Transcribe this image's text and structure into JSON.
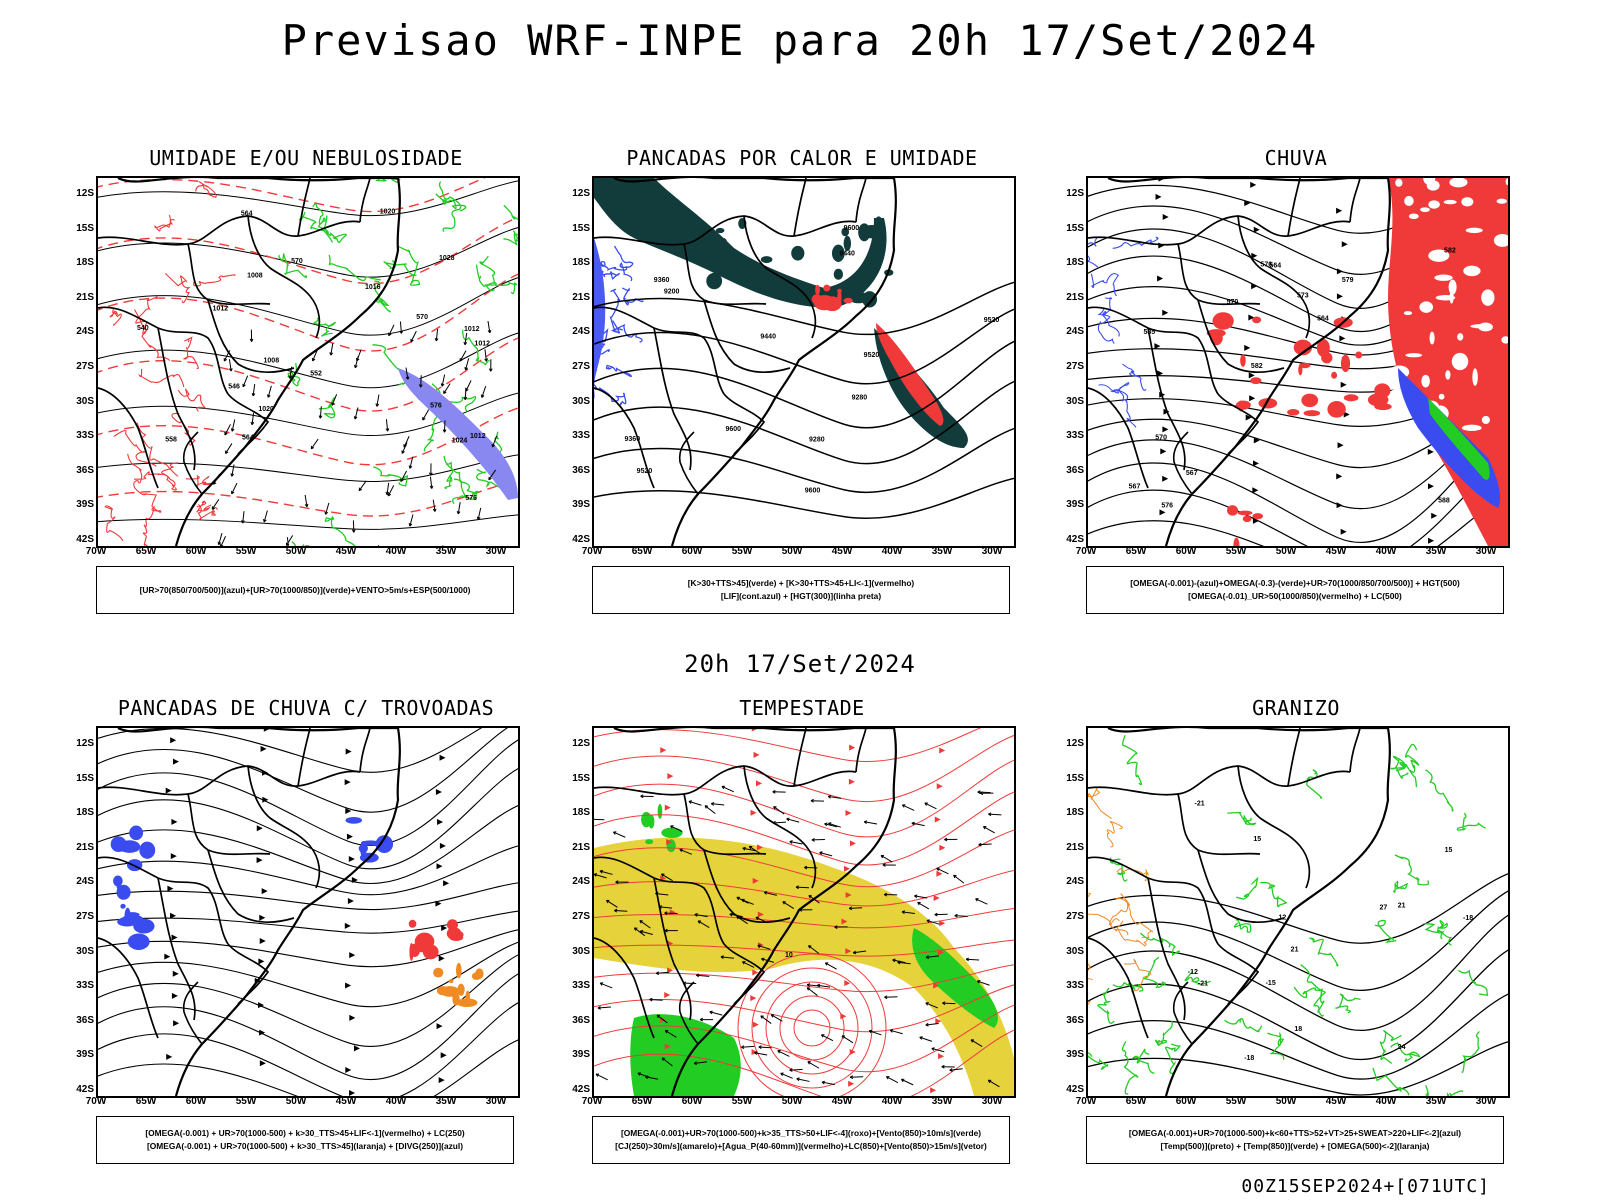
{
  "header": {
    "title": "Previsao WRF-INPE  para 20h 17/Set/2024"
  },
  "subheader": {
    "time_label": "20h 17/Set/2024"
  },
  "footer": {
    "run_label": "00Z15SEP2024+[071UTC]"
  },
  "axes": {
    "lat_labels": [
      "12S",
      "15S",
      "18S",
      "21S",
      "24S",
      "27S",
      "30S",
      "33S",
      "36S",
      "39S",
      "42S"
    ],
    "lon_labels": [
      "70W",
      "65W",
      "60W",
      "55W",
      "50W",
      "45W",
      "40W",
      "35W",
      "30W"
    ]
  },
  "colors": {
    "blue": "#3a4cf0",
    "green": "#22cc22",
    "red": "#f03a3a",
    "yellow": "#e6d23a",
    "orange": "#f08a22",
    "darkteal": "#123c3c",
    "purple": "#7878f0"
  },
  "panels": [
    {
      "id": "umidade",
      "title": "UMIDADE E/OU NEBULOSIDADE",
      "legend": [
        "[UR>70(850/700/500)](azul)+[UR>70(1000/850)](verde)+VENTO>5m/s+ESP(500/1000)"
      ],
      "contour_labels": [
        "1008",
        "1012",
        "1016",
        "1012",
        "1008",
        "1012",
        "1020",
        "1020",
        "1024",
        "1028",
        "1012",
        "576",
        "570",
        "564",
        "558",
        "552",
        "546",
        "540",
        "564",
        "570",
        "576"
      ]
    },
    {
      "id": "pancadas-calor",
      "title": "PANCADAS POR CALOR E UMIDADE",
      "legend": [
        "[K>30+TTS>45](verde) + [K>30+TTS>45+LI<-1](vermelho)",
        "[LIF](cont.azul) + [HGT(300)](linha preta)"
      ],
      "contour_labels": [
        "9600",
        "9600",
        "9600",
        "9520",
        "9520",
        "9520",
        "9440",
        "9440",
        "9360",
        "9360",
        "9280",
        "9280",
        "9200"
      ]
    },
    {
      "id": "chuva",
      "title": "CHUVA",
      "legend": [
        "[OMEGA(-0.001)-(azul)+OMEGA(-0.3)-(verde)+UR>70(1000/850/700/500)] + HGT(500)",
        "[OMEGA(-0.01)_UR>50(1000/850)(vermelho) + LC(500)"
      ],
      "contour_labels": [
        "588",
        "585",
        "582",
        "582",
        "579",
        "576",
        "576",
        "573",
        "570",
        "570",
        "567",
        "567",
        "564",
        "564"
      ]
    },
    {
      "id": "pancadas-trovoadas",
      "title": "PANCADAS DE CHUVA C/ TROVOADAS",
      "legend": [
        "[OMEGA(-0.001) + UR>70(1000-500) + k>30_TTS>45+LIF<-1](vermelho) + LC(250)",
        "[OMEGA(-0.001) + UR>70(1000-500) + k>30_TTS>45](laranja) + [DIVG(250)](azul)"
      ],
      "contour_labels": []
    },
    {
      "id": "tempestade",
      "title": "TEMPESTADE",
      "legend": [
        "[OMEGA(-0.001)+UR>70(1000-500)+k>35_TTS>50+LIF<-4](roxo)+[Vento(850)>10m/s](verde)",
        "[CJ(250)>30m/s](amarelo)+[Agua_P(40-60mm)](vermelho)+LC(850)+[Vento(850)>15m/s](vetor)"
      ],
      "contour_labels": [
        "10"
      ]
    },
    {
      "id": "granizo",
      "title": "GRANIZO",
      "legend": [
        "[OMEGA(-0.001)+UR>70(1000-500)+k<60+TTS>52+VT>25+SWEAT>220+LIF<-2](azul)",
        "[Temp(500)](preto) + [Temp(850)](verde) + [OMEGA(500)<-2](laranja)"
      ],
      "contour_labels": [
        "27",
        "24",
        "21",
        "21",
        "18",
        "15",
        "12",
        "-12",
        "-15",
        "-18",
        "-21",
        "-21",
        "-18",
        "15"
      ]
    }
  ]
}
